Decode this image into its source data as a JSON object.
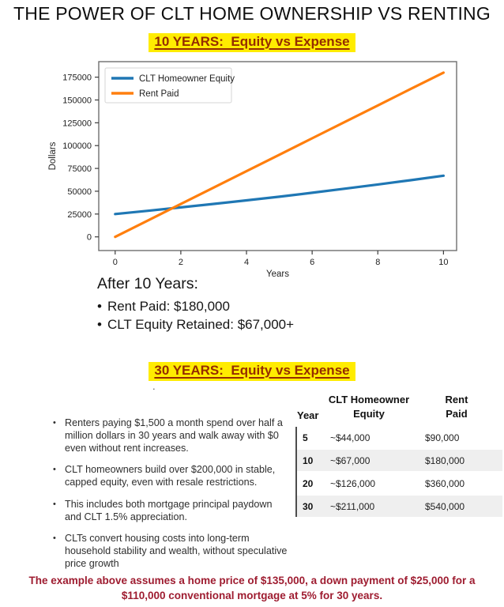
{
  "page": {
    "title": "THE POWER OF CLT HOME OWNERSHIP VS RENTING",
    "section1_heading": "10 YEARS:  Equity vs Expense",
    "section2_heading": "30 YEARS:  Equity vs Expense",
    "stray_mark": "."
  },
  "colors": {
    "highlight_yellow": "#ffec00",
    "heading_red": "#952d00",
    "footnote_red": "#9e1c30",
    "equity_line_blue": "#1f77b4",
    "rent_line_orange": "#ff7f0e",
    "table_stripe_gray": "#efefef"
  },
  "after10": {
    "heading": "After 10 Years:",
    "bullets": [
      "Rent Paid: $180,000",
      "CLT Equity Retained: $67,000+"
    ]
  },
  "bullets30": [
    "Renters paying $1,500 a month spend over half a million dollars in 30 years and walk away with $0 even without rent increases.",
    "CLT homeowners build over $200,000 in stable, capped equity, even with resale restrictions.",
    "This includes both mortgage principal paydown and CLT 1.5% appreciation.",
    "CLTs convert housing costs into long-term household stability and wealth, without speculative price growth"
  ],
  "table": {
    "headers": [
      "Year",
      "CLT Homeowner Equity",
      "Rent Paid"
    ],
    "rows": [
      [
        "5",
        "~$44,000",
        "$90,000"
      ],
      [
        "10",
        "~$67,000",
        "$180,000"
      ],
      [
        "20",
        "~$126,000",
        "$360,000"
      ],
      [
        "30",
        "~$211,000",
        "$540,000"
      ]
    ]
  },
  "footnote": {
    "line1": "The example above assumes a home price of $135,000, a down payment of $25,000 for a",
    "line2": "$110,000 conventional mortgage at 5% for 30 years."
  },
  "chart_data": {
    "type": "line",
    "title": "",
    "xlabel": "Years",
    "ylabel": "Dollars",
    "x": [
      0,
      1,
      2,
      3,
      4,
      5,
      6,
      7,
      8,
      9,
      10
    ],
    "series": [
      {
        "name": "CLT Homeowner Equity",
        "color": "#1f77b4",
        "values": [
          25000,
          28600,
          32300,
          36100,
          40000,
          44000,
          48300,
          52800,
          57400,
          62100,
          67000
        ]
      },
      {
        "name": "Rent Paid",
        "color": "#ff7f0e",
        "values": [
          0,
          18000,
          36000,
          54000,
          72000,
          90000,
          108000,
          126000,
          144000,
          162000,
          180000
        ]
      }
    ],
    "xticks": [
      0,
      2,
      4,
      6,
      8,
      10
    ],
    "yticks": [
      0,
      25000,
      50000,
      75000,
      100000,
      125000,
      150000,
      175000
    ],
    "xlim": [
      -0.5,
      10.4
    ],
    "ylim": [
      -15000,
      192000
    ],
    "grid": false,
    "legend_position": "upper left"
  }
}
